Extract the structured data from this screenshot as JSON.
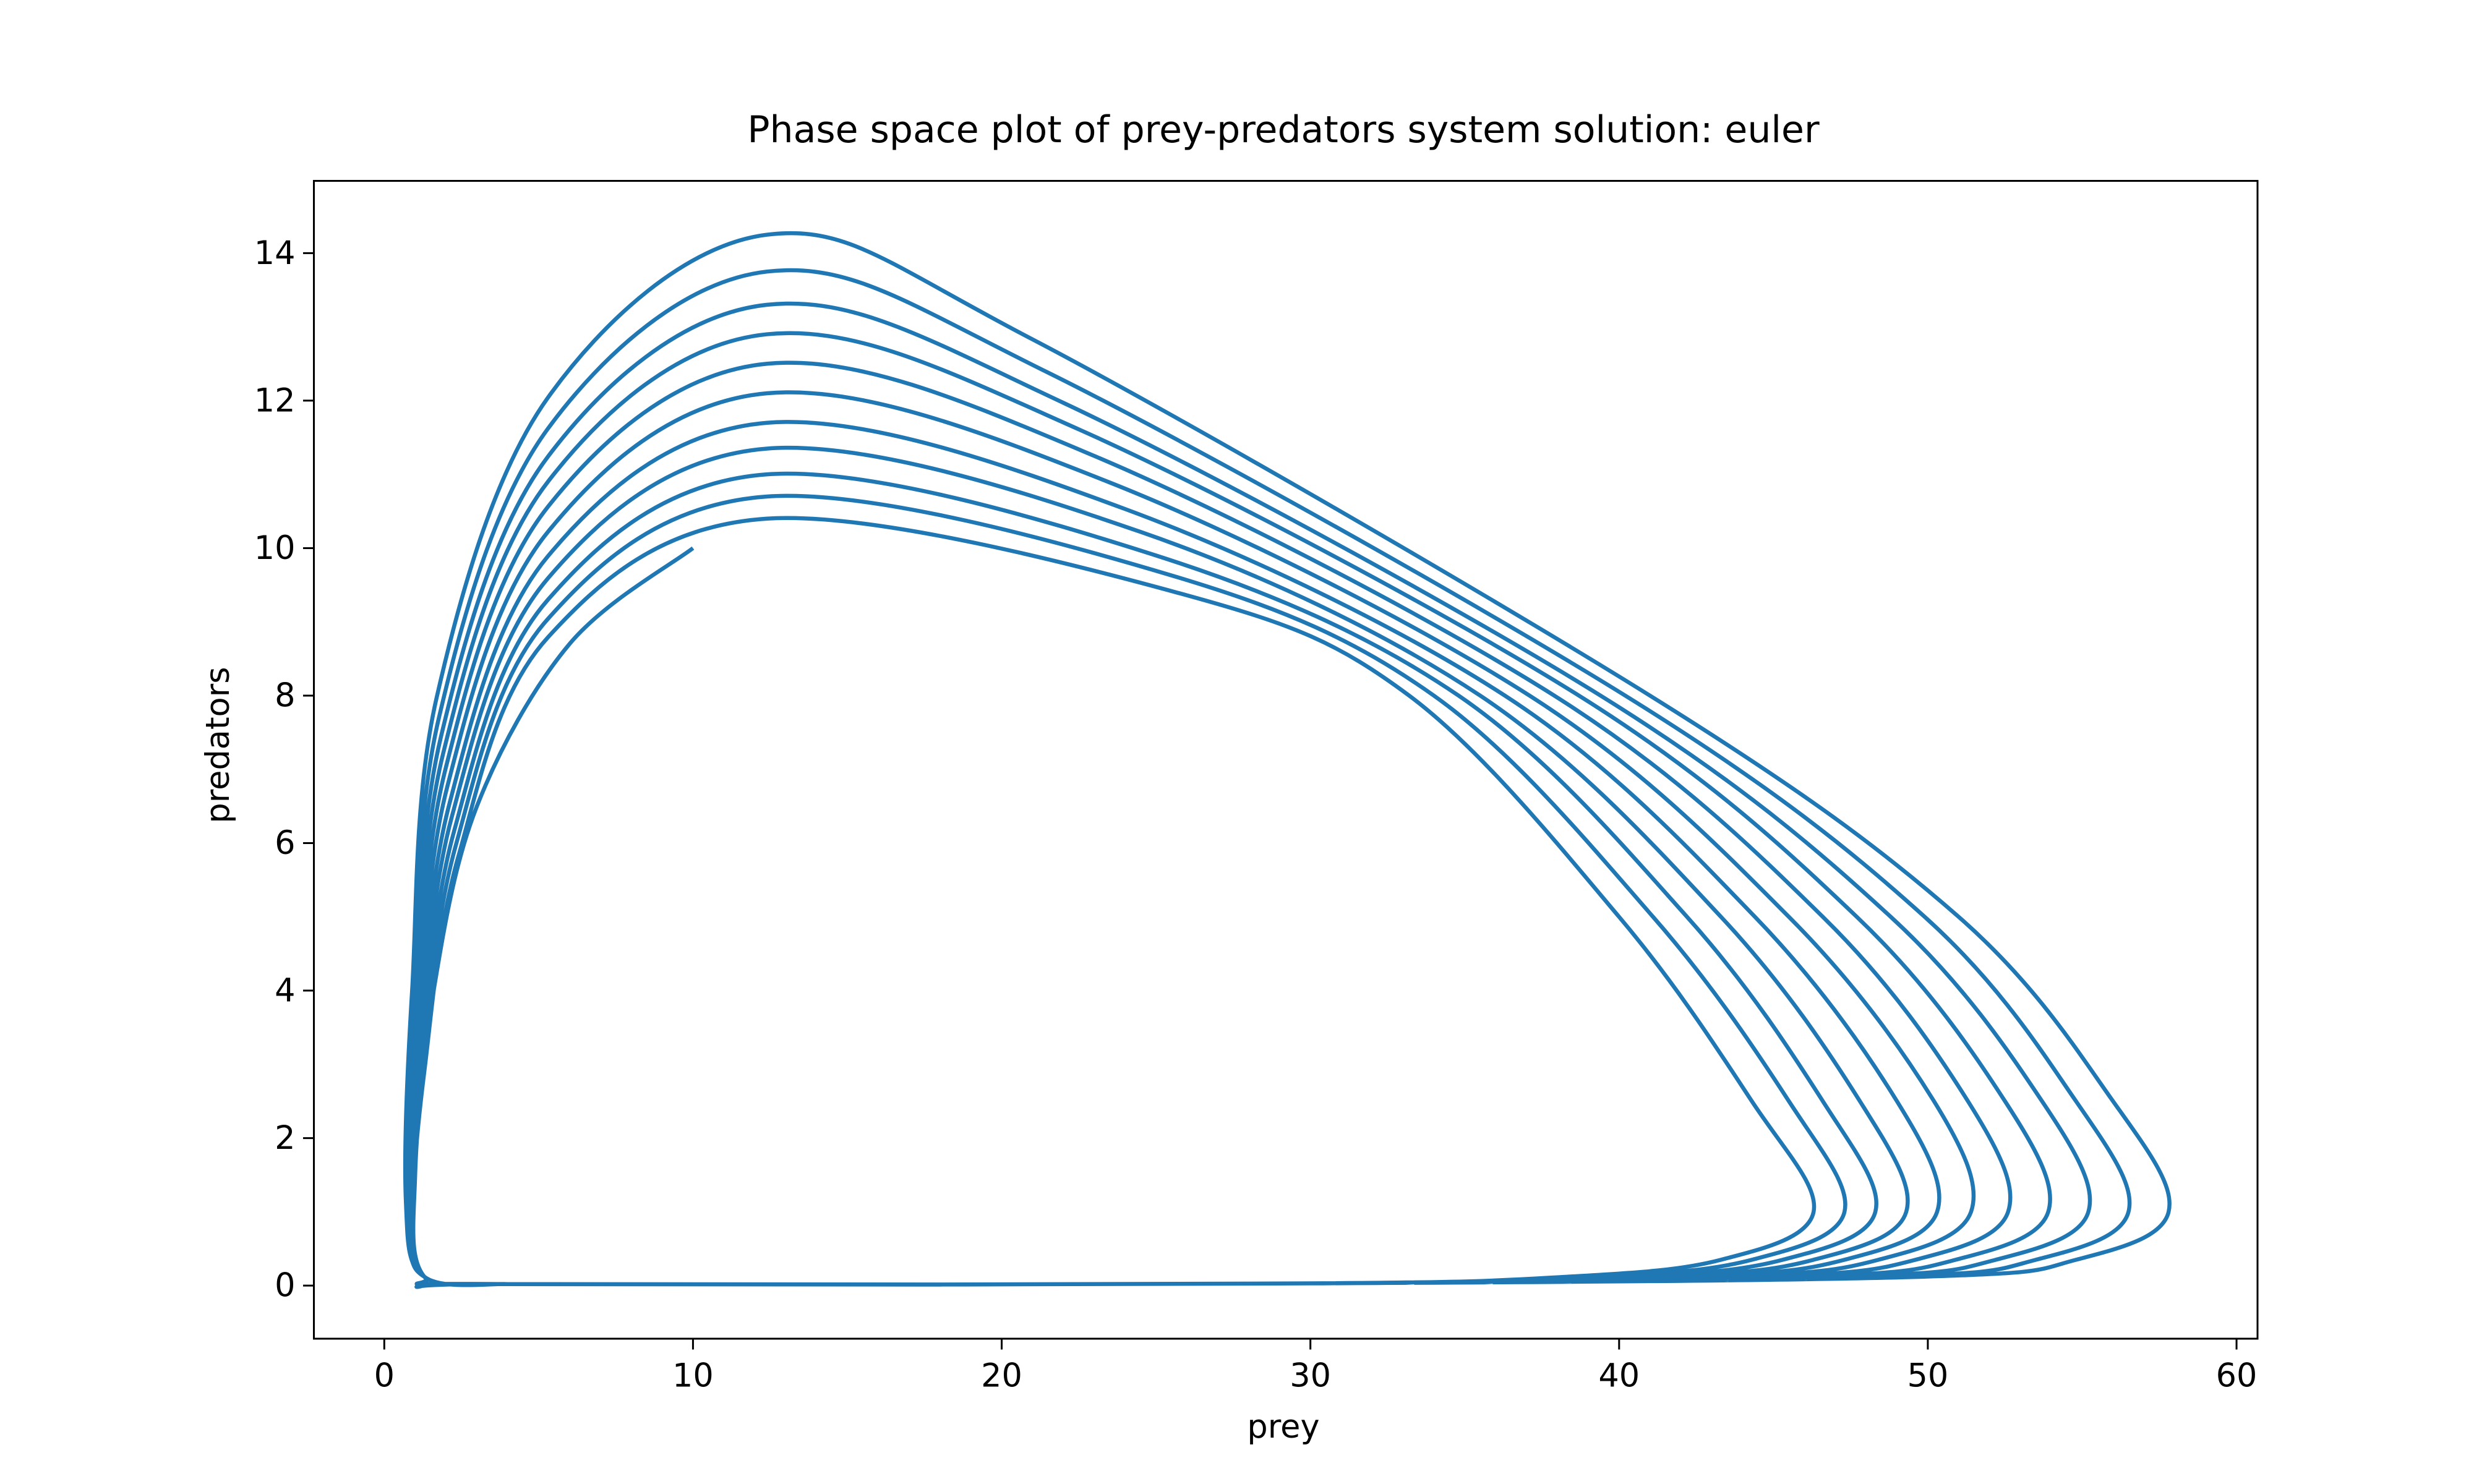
{
  "chart_data": {
    "type": "line",
    "title": "Phase space plot of prey-predators system solution: euler",
    "x_label": "prey",
    "y_label": "predators",
    "xlim": [
      -2.28,
      60.68
    ],
    "ylim": [
      -0.72,
      14.98
    ],
    "xticks": [
      0,
      10,
      20,
      30,
      40,
      50,
      60
    ],
    "yticks": [
      0,
      2,
      4,
      6,
      8,
      10,
      12,
      14
    ],
    "series": [
      {
        "color": "#1f77b4",
        "x": [
          10,
          6,
          3,
          1.6,
          1.0,
          1.3,
          4,
          30,
          38.3,
          43.3,
          46.3,
          44.3,
          40.0,
          33.2,
          26.0,
          12.4,
          5.3,
          2.4,
          1.3,
          0.9,
          1.3,
          4,
          30,
          39.3,
          44.3,
          47.3,
          45.5,
          41.1,
          34.0,
          25.5,
          12.4,
          5.3,
          2.33,
          1.26,
          0.88,
          1.3,
          4,
          30,
          40.3,
          45.3,
          48.3,
          46.6,
          42.2,
          34.8,
          25.0,
          12.4,
          5.3,
          2.26,
          1.22,
          0.86,
          1.3,
          4,
          30,
          41.3,
          46.3,
          49.3,
          47.8,
          43.3,
          35.5,
          24.5,
          12.4,
          5.3,
          2.19,
          1.18,
          0.84,
          1.3,
          4,
          30,
          42.3,
          47.3,
          50.3,
          49.0,
          44.4,
          36.3,
          24.0,
          12.4,
          5.3,
          2.12,
          1.14,
          0.82,
          1.3,
          4,
          30,
          43.4,
          48.4,
          51.4,
          50.2,
          45.5,
          37.1,
          23.5,
          12.4,
          5.3,
          2.05,
          1.1,
          0.8,
          1.3,
          4,
          30,
          44.6,
          49.6,
          52.6,
          51.3,
          46.6,
          37.9,
          23.0,
          12.4,
          5.3,
          1.98,
          1.06,
          0.78,
          1.3,
          4,
          30,
          45.9,
          50.9,
          53.9,
          52.5,
          47.7,
          38.7,
          22.5,
          12.4,
          5.3,
          1.91,
          1.02,
          0.76,
          1.3,
          4,
          30,
          47.2,
          52.2,
          55.2,
          53.7,
          48.8,
          39.4,
          22.0,
          12.4,
          5.3,
          1.84,
          0.98,
          0.74,
          1.3,
          4,
          30,
          48.5,
          53.5,
          56.5,
          54.8,
          49.9,
          40.2,
          21.5,
          12.4,
          5.3,
          1.77,
          0.94,
          0.72,
          1.3,
          4,
          30,
          49.8,
          54.8,
          57.8,
          56.0,
          51.0,
          41.0,
          21.0,
          12.4,
          5.3,
          1.7,
          0.9,
          0.7,
          1.3,
          4
        ],
        "values": [
          10,
          8.7,
          6.5,
          4,
          1.5,
          0.12,
          0.02,
          0.03,
          0.12,
          0.35,
          1,
          2.5,
          5,
          8,
          9.36,
          10.4,
          8.79,
          5.82,
          2.91,
          0.83,
          0.12,
          0.02,
          0.03,
          0.12,
          0.35,
          1,
          2.5,
          5,
          8,
          9.63,
          10.7,
          9.04,
          5.99,
          3.0,
          0.86,
          0.12,
          0.02,
          0.03,
          0.12,
          0.35,
          1,
          2.5,
          5,
          8,
          9.9,
          11.0,
          9.3,
          6.16,
          3.08,
          0.88,
          0.12,
          0.02,
          0.03,
          0.12,
          0.35,
          1,
          2.5,
          5,
          8,
          10.22,
          11.35,
          9.59,
          6.36,
          3.18,
          0.91,
          0.12,
          0.02,
          0.03,
          0.12,
          0.35,
          1,
          2.5,
          5,
          8,
          10.53,
          11.7,
          9.89,
          6.55,
          3.28,
          0.94,
          0.12,
          0.02,
          0.03,
          0.12,
          0.35,
          1,
          2.5,
          5,
          8,
          10.89,
          12.1,
          10.22,
          6.78,
          3.39,
          0.97,
          0.12,
          0.02,
          0.03,
          0.12,
          0.35,
          1,
          2.5,
          5,
          8,
          11.25,
          12.5,
          10.56,
          7.0,
          3.5,
          1.0,
          0.12,
          0.02,
          0.03,
          0.12,
          0.35,
          1,
          2.5,
          5,
          8,
          11.61,
          12.9,
          10.9,
          7.22,
          3.61,
          1.03,
          0.12,
          0.02,
          0.03,
          0.12,
          0.35,
          1,
          2.5,
          5,
          8,
          11.97,
          13.3,
          11.24,
          7.45,
          3.72,
          1.06,
          0.12,
          0.02,
          0.03,
          0.12,
          0.35,
          1,
          2.5,
          5,
          8,
          12.38,
          13.75,
          11.62,
          7.7,
          3.85,
          1.1,
          0.12,
          0.02,
          0.03,
          0.12,
          0.35,
          1,
          2.5,
          5,
          8,
          12.83,
          14.25,
          12.04,
          7.98,
          3.99,
          1.14,
          0.12,
          0.02
        ]
      }
    ]
  }
}
